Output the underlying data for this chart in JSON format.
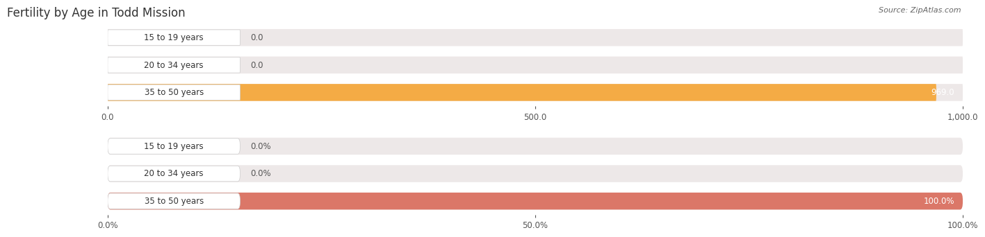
{
  "title": "Fertility by Age in Todd Mission",
  "source": "Source: ZipAtlas.com",
  "top_chart": {
    "categories": [
      "15 to 19 years",
      "20 to 34 years",
      "35 to 50 years"
    ],
    "values": [
      0.0,
      0.0,
      969.0
    ],
    "xlim": [
      0,
      1000
    ],
    "xticks": [
      0.0,
      500.0,
      1000.0
    ],
    "xtick_labels": [
      "0.0",
      "500.0",
      "1,000.0"
    ],
    "bar_color": "#F5A533",
    "bar_bg_color": "#EDE8E8",
    "label_values": [
      "0.0",
      "0.0",
      "969.0"
    ]
  },
  "bottom_chart": {
    "categories": [
      "15 to 19 years",
      "20 to 34 years",
      "35 to 50 years"
    ],
    "values": [
      0.0,
      0.0,
      100.0
    ],
    "xlim": [
      0,
      100
    ],
    "xticks": [
      0.0,
      50.0,
      100.0
    ],
    "xtick_labels": [
      "0.0%",
      "50.0%",
      "100.0%"
    ],
    "bar_color": "#D96B5A",
    "bar_bg_color": "#EDE8E8",
    "label_values": [
      "0.0%",
      "0.0%",
      "100.0%"
    ]
  },
  "bar_height": 0.62,
  "label_font_size": 8.5,
  "tick_font_size": 8.5,
  "category_font_size": 8.5,
  "title_font_size": 12,
  "title_color": "#333333",
  "source_color": "#666666",
  "bg_color": "#F2F2F2",
  "white": "#FFFFFF"
}
